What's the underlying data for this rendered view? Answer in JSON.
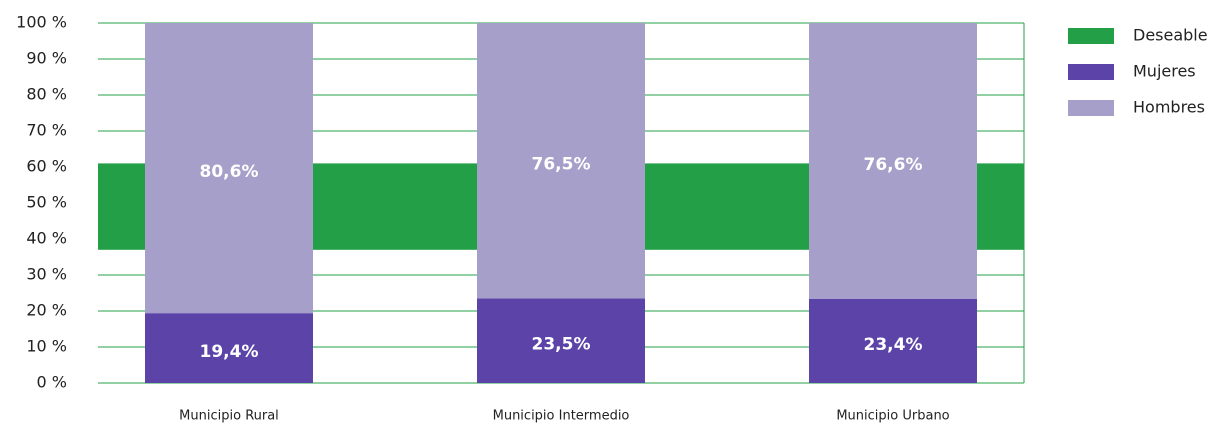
{
  "chart_data": {
    "type": "stacked_bar",
    "categories": [
      "Municipio Rural",
      "Municipio Intermedio",
      "Municipio Urbano"
    ],
    "series": [
      {
        "name": "Mujeres",
        "color": "#5b43a8",
        "values": [
          19.4,
          23.5,
          23.4
        ],
        "value_labels": [
          "19,4%",
          "23,5%",
          "23,4%"
        ]
      },
      {
        "name": "Hombres",
        "color": "#a69fc9",
        "values": [
          80.6,
          76.5,
          76.6
        ],
        "value_labels": [
          "80,6%",
          "76,5%",
          "76,6%"
        ]
      }
    ],
    "band": {
      "name": "Deseable",
      "color": "#23a047",
      "range": [
        37,
        61
      ]
    },
    "ylim": [
      0,
      100
    ],
    "yticks": [
      {
        "value": 0,
        "label": "0 %"
      },
      {
        "value": 10,
        "label": "10 %"
      },
      {
        "value": 20,
        "label": "20 %"
      },
      {
        "value": 30,
        "label": "30 %"
      },
      {
        "value": 40,
        "label": "40 %"
      },
      {
        "value": 50,
        "label": "50 %"
      },
      {
        "value": 60,
        "label": "60 %"
      },
      {
        "value": 70,
        "label": "70 %"
      },
      {
        "value": 80,
        "label": "80 %"
      },
      {
        "value": 90,
        "label": "90 %"
      },
      {
        "value": 100,
        "label": "100 %"
      }
    ],
    "grid": true,
    "grid_color": "#23a047",
    "legend": "right"
  }
}
